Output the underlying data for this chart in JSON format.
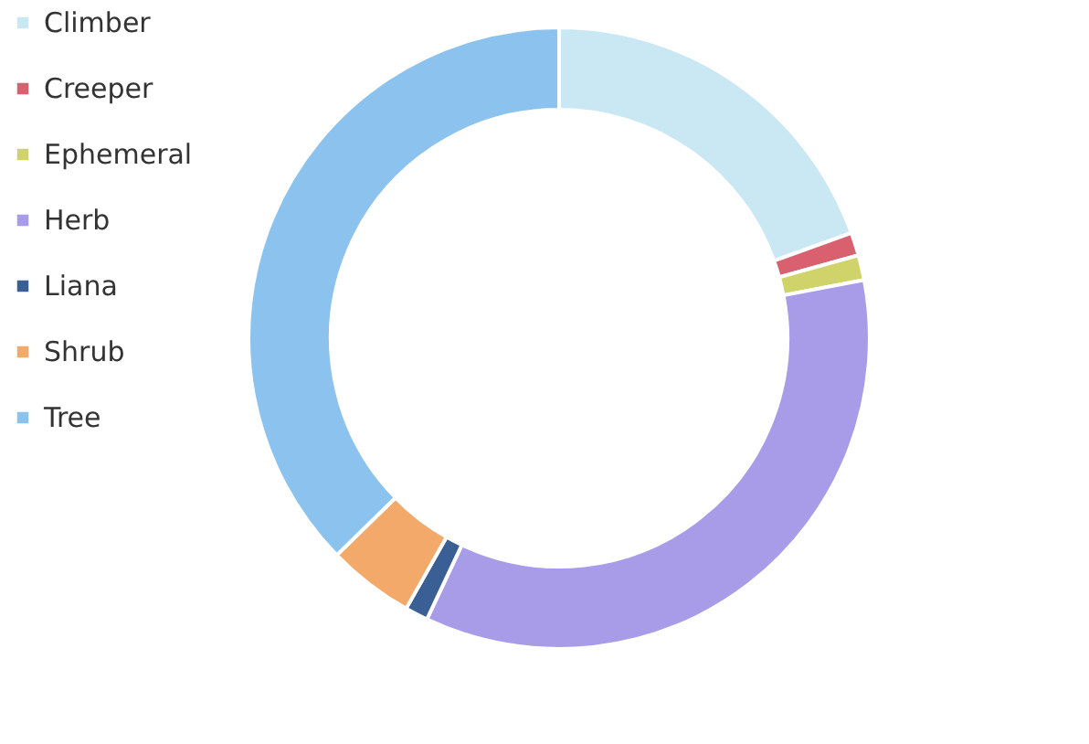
{
  "chart_data": {
    "type": "donut",
    "categories": [
      "Climber",
      "Creeper",
      "Ephemeral",
      "Herb",
      "Liana",
      "Shrub",
      "Tree"
    ],
    "values": [
      19.5,
      1.2,
      1.3,
      35.0,
      1.2,
      4.5,
      37.3
    ],
    "colors": [
      "#c9e8f3",
      "#d9606e",
      "#cfd36a",
      "#a89be8",
      "#3a5f95",
      "#f2a96a",
      "#8cc3ee"
    ],
    "legend": "left"
  }
}
